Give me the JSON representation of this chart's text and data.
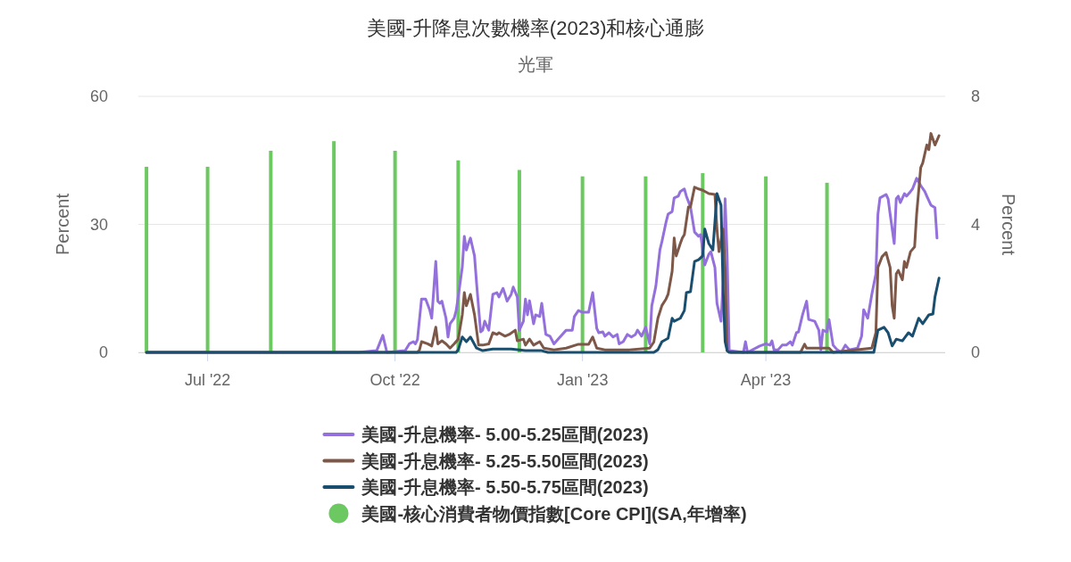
{
  "chart_data": {
    "type": "line",
    "title": "美國-升降息次數機率(2023)和核心通膨",
    "subtitle": "光軍",
    "ylabel": "Percent",
    "y2label": "Percent",
    "xlim": [
      "2022-05-28",
      "2023-06-28"
    ],
    "xticks": [
      {
        "value": "2022-07-01",
        "label": "Jul '22"
      },
      {
        "value": "2022-10-01",
        "label": "Oct '22"
      },
      {
        "value": "2023-01-01",
        "label": "Jan '23"
      },
      {
        "value": "2023-04-01",
        "label": "Apr '23"
      }
    ],
    "ylim": [
      0,
      60
    ],
    "yticks": [
      0,
      30,
      60
    ],
    "y2lim": [
      0,
      8
    ],
    "y2ticks": [
      0,
      4,
      8
    ],
    "grid": "y",
    "legend": "bottom",
    "series": [
      {
        "name": "美國-升息機率- 5.00-5.25區間(2023)",
        "color": "#9370db",
        "x": [
          "2022-06-01",
          "2022-09-13",
          "2022-09-22",
          "2022-09-25",
          "2022-09-27",
          "2022-10-06",
          "2022-10-08",
          "2022-10-10",
          "2022-10-11",
          "2022-10-12",
          "2022-10-14",
          "2022-10-16",
          "2022-10-18",
          "2022-10-19",
          "2022-10-21",
          "2022-10-22",
          "2022-10-23",
          "2022-10-24",
          "2022-10-26",
          "2022-10-27",
          "2022-10-28",
          "2022-10-30",
          "2022-10-31",
          "2022-11-01",
          "2022-11-03",
          "2022-11-04",
          "2022-11-05",
          "2022-11-06",
          "2022-11-07",
          "2022-11-09",
          "2022-11-10",
          "2022-11-12",
          "2022-11-13",
          "2022-11-14",
          "2022-11-16",
          "2022-11-18",
          "2022-11-20",
          "2022-11-21",
          "2022-11-23",
          "2022-11-24",
          "2022-11-25",
          "2022-11-27",
          "2022-11-28",
          "2022-11-30",
          "2022-12-01",
          "2022-12-03",
          "2022-12-04",
          "2022-12-05",
          "2022-12-06",
          "2022-12-08",
          "2022-12-09",
          "2022-12-11",
          "2022-12-12",
          "2022-12-14",
          "2022-12-16",
          "2022-12-18",
          "2022-12-20",
          "2022-12-24",
          "2022-12-27",
          "2022-12-28",
          "2022-12-30",
          "2023-01-01",
          "2023-01-04",
          "2023-01-06",
          "2023-01-08",
          "2023-01-09",
          "2023-01-11",
          "2023-01-12",
          "2023-01-14",
          "2023-01-16",
          "2023-01-18",
          "2023-01-19",
          "2023-01-21",
          "2023-01-23",
          "2023-01-25",
          "2023-01-27",
          "2023-01-28",
          "2023-01-30",
          "2023-02-01",
          "2023-02-03",
          "2023-02-04",
          "2023-02-06",
          "2023-02-08",
          "2023-02-09",
          "2023-02-11",
          "2023-02-12",
          "2023-02-14",
          "2023-02-15",
          "2023-02-17",
          "2023-02-18",
          "2023-02-20",
          "2023-02-21",
          "2023-02-23",
          "2023-02-25",
          "2023-02-27",
          "2023-02-28",
          "2023-03-02",
          "2023-03-04",
          "2023-03-05",
          "2023-03-07",
          "2023-03-08",
          "2023-03-10",
          "2023-03-11",
          "2023-03-12",
          "2023-03-13",
          "2023-03-14",
          "2023-03-21",
          "2023-03-22",
          "2023-03-23",
          "2023-03-29",
          "2023-04-01",
          "2023-04-03",
          "2023-04-04",
          "2023-04-05",
          "2023-04-07",
          "2023-04-09",
          "2023-04-11",
          "2023-04-13",
          "2023-04-14",
          "2023-04-16",
          "2023-04-17",
          "2023-04-19",
          "2023-04-21",
          "2023-04-22",
          "2023-04-25",
          "2023-04-27",
          "2023-04-28",
          "2023-04-29",
          "2023-05-01",
          "2023-05-02",
          "2023-05-04",
          "2023-05-06",
          "2023-05-08",
          "2023-05-10",
          "2023-05-12",
          "2023-05-16",
          "2023-05-18",
          "2023-05-19",
          "2023-05-21",
          "2023-05-23",
          "2023-05-25",
          "2023-05-26",
          "2023-05-27",
          "2023-05-30",
          "2023-05-31",
          "2023-06-01",
          "2023-06-03",
          "2023-06-04",
          "2023-06-05",
          "2023-06-06",
          "2023-06-08",
          "2023-06-09",
          "2023-06-11",
          "2023-06-12",
          "2023-06-14",
          "2023-06-16",
          "2023-06-18",
          "2023-06-19",
          "2023-06-21",
          "2023-06-23",
          "2023-06-24"
        ],
        "values": [
          0,
          0,
          0.4,
          4.0,
          0,
          0.4,
          2,
          2.5,
          2,
          3,
          12.5,
          12.5,
          10,
          8,
          21.3,
          12,
          11.5,
          12,
          8,
          3.6,
          6.7,
          8,
          9.8,
          13,
          20,
          27.2,
          24,
          25.5,
          26.8,
          22.6,
          16.3,
          4.8,
          5.2,
          7.3,
          5.2,
          13.6,
          14,
          13,
          15,
          13.6,
          12,
          13.6,
          15.3,
          13,
          5.2,
          7.3,
          12.5,
          8.8,
          12.1,
          6.7,
          8.8,
          8.4,
          11.5,
          4.2,
          3.8,
          2,
          3.1,
          5.2,
          5.2,
          8.4,
          9.8,
          9.4,
          9.4,
          14,
          5.6,
          4.6,
          4.8,
          3.8,
          4.6,
          3.6,
          4.2,
          2,
          2.5,
          4.2,
          3.6,
          4.2,
          5.2,
          3.8,
          5.9,
          2,
          10.9,
          15.5,
          24,
          26,
          30.5,
          32.4,
          33,
          36.2,
          36.6,
          37.7,
          38.3,
          36.6,
          34.1,
          28.2,
          27.2,
          27.6,
          20.5,
          23,
          23.6,
          19.9,
          11.5,
          7.3,
          16.3,
          36,
          22.6,
          0.4,
          0,
          2.5,
          0,
          1.5,
          2,
          1.7,
          2.7,
          0.6,
          0.6,
          1.7,
          1.7,
          2.5,
          1.7,
          4.6,
          4.8,
          8.8,
          12,
          7.7,
          7.3,
          5.2,
          0.6,
          5.2,
          4.8,
          7.7,
          1.7,
          0.6,
          0,
          1.7,
          0.6,
          1,
          3.8,
          10,
          8,
          13.6,
          18.4,
          32.4,
          36.2,
          37,
          36,
          32.4,
          25.5,
          36,
          36.6,
          35.1,
          37.2,
          36.6,
          37.7,
          38.3,
          40.8,
          39.1,
          37.7,
          36.6,
          34.5,
          33.9,
          26.8
        ]
      },
      {
        "name": "美國-升息機率- 5.25-5.50區間(2023)",
        "color": "#7d5848",
        "x": [
          "2022-06-01",
          "2022-10-12",
          "2022-10-13",
          "2022-10-14",
          "2022-10-17",
          "2022-10-19",
          "2022-10-21",
          "2022-10-22",
          "2022-10-24",
          "2022-10-26",
          "2022-10-28",
          "2022-10-30",
          "2022-11-01",
          "2022-11-03",
          "2022-11-04",
          "2022-11-05",
          "2022-11-07",
          "2022-11-09",
          "2022-11-11",
          "2022-11-13",
          "2022-11-16",
          "2022-11-18",
          "2022-11-20",
          "2022-11-21",
          "2022-11-24",
          "2022-11-26",
          "2022-11-29",
          "2022-11-30",
          "2022-12-03",
          "2022-12-04",
          "2022-12-06",
          "2022-12-08",
          "2022-12-11",
          "2022-12-13",
          "2022-12-18",
          "2022-12-24",
          "2022-12-30",
          "2023-01-04",
          "2023-01-06",
          "2023-01-08",
          "2023-01-12",
          "2023-01-24",
          "2023-02-03",
          "2023-02-05",
          "2023-02-07",
          "2023-02-09",
          "2023-02-11",
          "2023-02-12",
          "2023-02-14",
          "2023-02-15",
          "2023-02-16",
          "2023-02-18",
          "2023-02-19",
          "2023-02-20",
          "2023-02-22",
          "2023-02-23",
          "2023-02-25",
          "2023-02-27",
          "2023-03-01",
          "2023-03-04",
          "2023-03-07",
          "2023-03-08",
          "2023-03-09",
          "2023-03-11",
          "2023-03-12",
          "2023-03-13",
          "2023-03-15",
          "2023-04-18",
          "2023-04-20",
          "2023-04-21",
          "2023-05-02",
          "2023-05-04",
          "2023-05-23",
          "2023-05-25",
          "2023-05-26",
          "2023-05-28",
          "2023-05-30",
          "2023-06-01",
          "2023-06-02",
          "2023-06-03",
          "2023-06-04",
          "2023-06-05",
          "2023-06-07",
          "2023-06-08",
          "2023-06-09",
          "2023-06-11",
          "2023-06-13",
          "2023-06-14",
          "2023-06-16",
          "2023-06-17",
          "2023-06-19",
          "2023-06-20",
          "2023-06-21",
          "2023-06-23",
          "2023-06-25"
        ],
        "values": [
          0,
          0,
          0.6,
          2.5,
          2,
          1.5,
          5.9,
          2,
          2.7,
          2,
          1,
          2,
          3.1,
          8.8,
          14,
          10.9,
          13.6,
          8.8,
          1.7,
          1.7,
          2,
          4.6,
          4.2,
          4.6,
          3.8,
          4.2,
          5.2,
          2.7,
          3.1,
          1.7,
          3.1,
          1.7,
          2.5,
          1,
          0.6,
          1,
          1.9,
          1.9,
          3.6,
          1,
          0.6,
          0.6,
          1,
          2.4,
          8,
          11,
          12.5,
          13.6,
          19,
          26.8,
          22.6,
          25.5,
          26.8,
          27.6,
          34.1,
          34.1,
          38.7,
          38.3,
          38,
          37.2,
          37,
          28.9,
          23.6,
          28.9,
          19.9,
          0.4,
          0,
          0,
          1.9,
          1,
          1,
          0,
          1,
          4.6,
          19.9,
          22.4,
          23.4,
          19.9,
          10.9,
          8,
          18.4,
          19.2,
          17,
          21.3,
          19.9,
          23.6,
          24.7,
          32.4,
          43.3,
          44.4,
          48.6,
          47.5,
          51.3,
          48.6,
          50.8
        ]
      },
      {
        "name": "美國-升息機率- 5.50-5.75區間(2023)",
        "color": "#1a4e6e",
        "x": [
          "2022-06-01",
          "2022-10-31",
          "2022-11-01",
          "2022-11-03",
          "2022-11-05",
          "2022-11-07",
          "2022-11-10",
          "2022-11-13",
          "2022-11-18",
          "2022-11-27",
          "2022-12-04",
          "2022-12-12",
          "2022-12-15",
          "2023-02-05",
          "2023-02-07",
          "2023-02-09",
          "2023-02-12",
          "2023-02-14",
          "2023-02-15",
          "2023-02-18",
          "2023-02-20",
          "2023-02-21",
          "2023-02-23",
          "2023-02-25",
          "2023-02-27",
          "2023-03-01",
          "2023-03-02",
          "2023-03-04",
          "2023-03-06",
          "2023-03-08",
          "2023-03-10",
          "2023-03-11",
          "2023-03-12",
          "2023-03-13",
          "2023-03-14",
          "2023-05-24",
          "2023-05-26",
          "2023-05-29",
          "2023-05-31",
          "2023-06-02",
          "2023-06-04",
          "2023-06-07",
          "2023-06-10",
          "2023-06-12",
          "2023-06-15",
          "2023-06-17",
          "2023-06-20",
          "2023-06-22",
          "2023-06-23",
          "2023-06-25"
        ],
        "values": [
          0,
          0,
          0.6,
          3.6,
          2.5,
          3.6,
          1,
          0.4,
          0.8,
          0.8,
          0.4,
          0.4,
          0,
          0,
          0.6,
          2.5,
          3.3,
          8,
          7.3,
          8,
          9.8,
          14,
          14.2,
          21.3,
          21.7,
          22.6,
          28.9,
          25.5,
          24,
          37.2,
          34.5,
          15,
          2.5,
          0.4,
          0,
          0,
          5.2,
          5.9,
          4.6,
          1.5,
          3.1,
          2.7,
          4.6,
          3.8,
          8,
          6.7,
          8.8,
          9,
          13,
          17.4
        ]
      },
      {
        "name": "美國-核心消費者物價指數[Core CPI](SA,年增率)",
        "type": "bar",
        "axis": "y2",
        "color": "#6cc860",
        "x": [
          "2022-06-01",
          "2022-07-01",
          "2022-08-01",
          "2022-09-01",
          "2022-10-01",
          "2022-11-01",
          "2022-12-01",
          "2023-01-01",
          "2023-02-01",
          "2023-03-01",
          "2023-04-01",
          "2023-05-01"
        ],
        "values": [
          5.8,
          5.8,
          6.3,
          6.6,
          6.3,
          6.0,
          5.7,
          5.5,
          5.5,
          5.6,
          5.5,
          5.3
        ]
      }
    ]
  }
}
